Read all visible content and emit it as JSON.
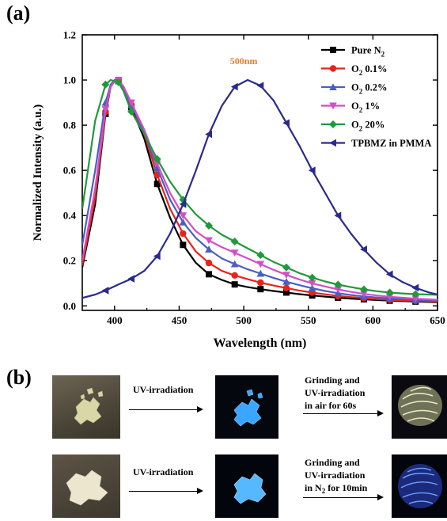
{
  "panel_a": {
    "label": "(a)"
  },
  "panel_b": {
    "label": "(b)",
    "row1": {
      "step1": "UV-irradiation",
      "step2_lines": [
        "Grinding and",
        "UV-irradiation",
        "in air for 60s"
      ]
    },
    "row2": {
      "step1": "UV-irradiation",
      "step2_lines": [
        "Grinding and",
        "UV-irradiation"
      ],
      "step2_prefix": "in N",
      "step2_sub": "2",
      "step2_suffix": " for 10min"
    }
  },
  "chart_data": {
    "type": "line",
    "xlabel": "Wavelength (nm)",
    "ylabel": "Normalized Intensity (a.u.)",
    "xlim": [
      375,
      650
    ],
    "ylim": [
      -0.02,
      1.2
    ],
    "xticks": [
      400,
      450,
      500,
      550,
      600,
      650
    ],
    "yticks": [
      0.0,
      0.2,
      0.4,
      0.6,
      0.8,
      1.0,
      1.2
    ],
    "annotation": {
      "text": "500nm",
      "x": 500,
      "y": 1.07,
      "color": "#e67e22"
    },
    "legend_position": "top-right",
    "grid": false,
    "series": [
      {
        "name": "Pure N",
        "name_sub": "2",
        "color": "#000000",
        "marker": "square",
        "x": [
          375,
          385,
          393,
          397,
          400,
          403,
          407,
          413,
          423,
          433,
          443,
          453,
          463,
          473,
          483,
          493,
          503,
          513,
          523,
          533,
          543,
          553,
          563,
          573,
          583,
          593,
          603,
          613,
          623,
          633,
          643,
          650
        ],
        "y": [
          0.17,
          0.45,
          0.85,
          0.97,
          0.995,
          1.0,
          0.97,
          0.88,
          0.74,
          0.54,
          0.39,
          0.27,
          0.19,
          0.14,
          0.115,
          0.095,
          0.083,
          0.074,
          0.066,
          0.059,
          0.052,
          0.046,
          0.041,
          0.036,
          0.032,
          0.029,
          0.026,
          0.023,
          0.021,
          0.019,
          0.017,
          0.016
        ],
        "markers_at": [
          393,
          403,
          413,
          433,
          453,
          473,
          493,
          513,
          533,
          553,
          573,
          593,
          613,
          633
        ]
      },
      {
        "name": "O",
        "name_sub": "2",
        "name_suffix": " 0.1%",
        "color": "#e8231b",
        "marker": "circle",
        "x": [
          375,
          385,
          393,
          397,
          400,
          403,
          407,
          413,
          423,
          433,
          443,
          453,
          463,
          473,
          483,
          493,
          503,
          513,
          523,
          533,
          543,
          553,
          563,
          573,
          583,
          593,
          603,
          613,
          623,
          633,
          643,
          650
        ],
        "y": [
          0.18,
          0.48,
          0.86,
          0.97,
          0.995,
          1.0,
          0.97,
          0.89,
          0.76,
          0.58,
          0.43,
          0.32,
          0.24,
          0.19,
          0.155,
          0.135,
          0.118,
          0.103,
          0.09,
          0.079,
          0.068,
          0.059,
          0.051,
          0.044,
          0.039,
          0.034,
          0.03,
          0.027,
          0.024,
          0.022,
          0.02,
          0.019
        ],
        "markers_at": [
          393,
          403,
          413,
          433,
          453,
          473,
          493,
          513,
          533,
          553,
          573,
          593,
          613,
          633
        ]
      },
      {
        "name": "O",
        "name_sub": "2",
        "name_suffix": " 0.2%",
        "color": "#4a5fc1",
        "marker": "triangle-up",
        "x": [
          375,
          385,
          393,
          397,
          400,
          403,
          407,
          413,
          423,
          433,
          443,
          453,
          463,
          473,
          483,
          493,
          503,
          513,
          523,
          533,
          543,
          553,
          563,
          573,
          583,
          593,
          603,
          613,
          623,
          633,
          643,
          650
        ],
        "y": [
          0.27,
          0.6,
          0.9,
          0.98,
          1.0,
          0.995,
          0.96,
          0.89,
          0.77,
          0.61,
          0.47,
          0.37,
          0.3,
          0.25,
          0.21,
          0.185,
          0.162,
          0.143,
          0.124,
          0.107,
          0.092,
          0.078,
          0.066,
          0.056,
          0.048,
          0.042,
          0.037,
          0.033,
          0.03,
          0.027,
          0.025,
          0.024
        ],
        "markers_at": [
          393,
          403,
          413,
          433,
          453,
          473,
          493,
          513,
          533,
          553,
          573,
          593,
          613,
          633
        ]
      },
      {
        "name": "O",
        "name_sub": "2",
        "name_suffix": " 1%",
        "color": "#d24ec8",
        "marker": "triangle-down",
        "x": [
          375,
          385,
          393,
          397,
          400,
          403,
          407,
          413,
          423,
          433,
          443,
          453,
          463,
          473,
          483,
          493,
          503,
          513,
          523,
          533,
          543,
          553,
          563,
          573,
          583,
          593,
          603,
          613,
          623,
          633,
          643,
          650
        ],
        "y": [
          0.2,
          0.52,
          0.87,
          0.97,
          0.995,
          1.0,
          0.97,
          0.9,
          0.78,
          0.63,
          0.5,
          0.4,
          0.33,
          0.29,
          0.26,
          0.235,
          0.21,
          0.185,
          0.16,
          0.137,
          0.117,
          0.1,
          0.086,
          0.073,
          0.062,
          0.053,
          0.046,
          0.04,
          0.036,
          0.032,
          0.029,
          0.027
        ],
        "markers_at": [
          393,
          403,
          413,
          433,
          453,
          473,
          493,
          513,
          533,
          553,
          573,
          593,
          613,
          633
        ]
      },
      {
        "name": "O",
        "name_sub": "2",
        "name_suffix": " 20%",
        "color": "#1f9a3a",
        "marker": "diamond",
        "x": [
          375,
          385,
          393,
          397,
          400,
          403,
          407,
          413,
          423,
          433,
          443,
          453,
          463,
          473,
          483,
          493,
          503,
          513,
          523,
          533,
          543,
          553,
          563,
          573,
          583,
          593,
          603,
          613,
          623,
          633,
          643,
          650
        ],
        "y": [
          0.43,
          0.82,
          0.98,
          1.0,
          0.995,
          0.99,
          0.95,
          0.86,
          0.76,
          0.65,
          0.55,
          0.47,
          0.405,
          0.355,
          0.315,
          0.285,
          0.255,
          0.225,
          0.195,
          0.17,
          0.145,
          0.125,
          0.108,
          0.094,
          0.083,
          0.073,
          0.065,
          0.059,
          0.055,
          0.052,
          0.05,
          0.049
        ],
        "markers_at": [
          393,
          403,
          413,
          433,
          453,
          473,
          493,
          513,
          533,
          553,
          573,
          593,
          613,
          633
        ]
      },
      {
        "name": "TPBMZ in PMMA",
        "color": "#2b2a8c",
        "marker": "triangle-left",
        "x": [
          375,
          385,
          393,
          403,
          413,
          423,
          433,
          443,
          453,
          463,
          473,
          483,
          493,
          503,
          513,
          523,
          533,
          543,
          553,
          563,
          573,
          583,
          593,
          603,
          613,
          623,
          633,
          643,
          650
        ],
        "y": [
          0.035,
          0.05,
          0.068,
          0.095,
          0.12,
          0.155,
          0.22,
          0.32,
          0.45,
          0.6,
          0.76,
          0.885,
          0.97,
          1.0,
          0.975,
          0.91,
          0.81,
          0.71,
          0.6,
          0.5,
          0.4,
          0.32,
          0.25,
          0.19,
          0.14,
          0.105,
          0.08,
          0.06,
          0.05
        ],
        "markers_at": [
          393,
          413,
          433,
          453,
          473,
          493,
          513,
          533,
          553,
          573,
          593,
          613,
          633
        ]
      }
    ]
  }
}
